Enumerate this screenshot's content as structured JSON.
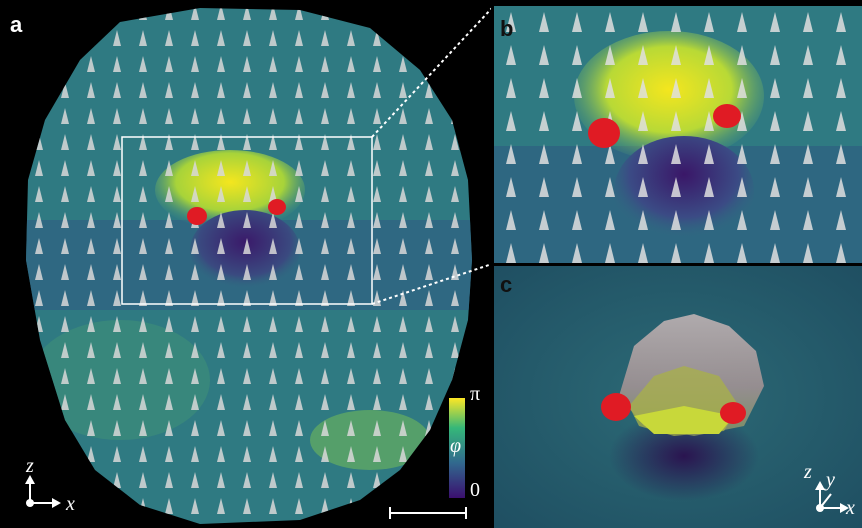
{
  "panels": {
    "a": {
      "label": "a"
    },
    "b": {
      "label": "b"
    },
    "c": {
      "label": "c"
    }
  },
  "axes_a": {
    "vertical": "z",
    "horizontal": "x"
  },
  "axes_c": {
    "vertical": "z",
    "depth": "y",
    "horizontal": "x"
  },
  "colorbar": {
    "max_label": "π",
    "symbol": "φ",
    "min_label": "0",
    "colors": [
      "#3b0f6f",
      "#31688e",
      "#35b779",
      "#fde725"
    ]
  },
  "colors": {
    "background": "#000000",
    "field": "#2f7a82",
    "defect": "#e01b24",
    "arrow": "#d9d9d9"
  }
}
